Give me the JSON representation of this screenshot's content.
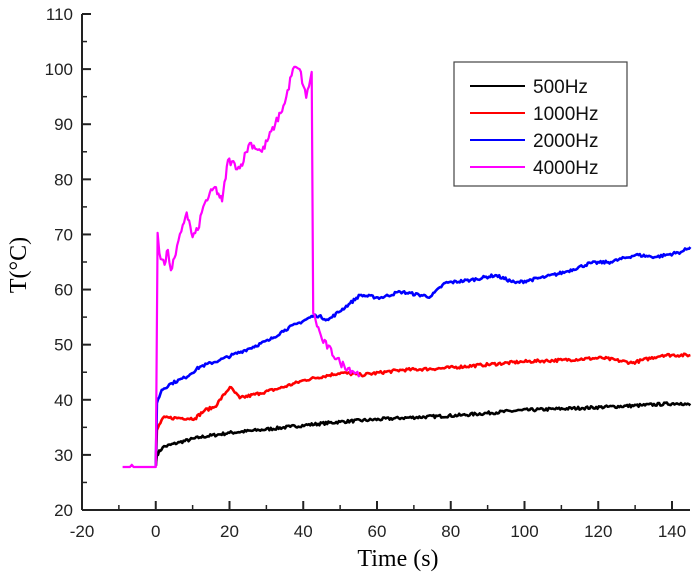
{
  "chart_data": {
    "type": "line",
    "title": "",
    "xlabel": "Time (s)",
    "ylabel": "T(°C)",
    "xlim": [
      -20,
      145
    ],
    "ylim": [
      20,
      110
    ],
    "x_ticks": [
      -20,
      0,
      20,
      40,
      60,
      80,
      100,
      120,
      140
    ],
    "x_tick_labels": [
      "-20",
      "0",
      "20",
      "40",
      "60",
      "80",
      "100",
      "120",
      "140"
    ],
    "y_ticks": [
      20,
      30,
      40,
      50,
      60,
      70,
      80,
      90,
      100,
      110
    ],
    "y_tick_labels": [
      "20",
      "30",
      "40",
      "50",
      "60",
      "70",
      "80",
      "90",
      "100",
      "110"
    ],
    "grid": false,
    "legend_position": "top-right",
    "series": [
      {
        "name": "500Hz",
        "color": "#000000",
        "points": [
          [
            0,
            28
          ],
          [
            0.3,
            30
          ],
          [
            1.9,
            31.4
          ],
          [
            6.5,
            32.3
          ],
          [
            12,
            33.2
          ],
          [
            20,
            34
          ],
          [
            28,
            34.5
          ],
          [
            36.5,
            35.1
          ],
          [
            40.5,
            35.4
          ],
          [
            50,
            36
          ],
          [
            66.6,
            36.7
          ],
          [
            83,
            37.2
          ],
          [
            99.3,
            38.1
          ],
          [
            115.6,
            38.5
          ],
          [
            132,
            39
          ],
          [
            142.4,
            39.4
          ],
          [
            145,
            39
          ]
        ]
      },
      {
        "name": "1000Hz",
        "color": "#ff0000",
        "points": [
          [
            0,
            28
          ],
          [
            0.3,
            34.5
          ],
          [
            1.9,
            36.7
          ],
          [
            6.5,
            36.7
          ],
          [
            10.6,
            36.6
          ],
          [
            13.3,
            38.1
          ],
          [
            16,
            38.7
          ],
          [
            20.1,
            42.3
          ],
          [
            22.8,
            40.3
          ],
          [
            28.3,
            41.2
          ],
          [
            33.7,
            42.1
          ],
          [
            40.5,
            43.6
          ],
          [
            50.2,
            44.9
          ],
          [
            55.7,
            44.5
          ],
          [
            66.6,
            45.4
          ],
          [
            77.5,
            45.7
          ],
          [
            88.4,
            46.3
          ],
          [
            99.3,
            46.9
          ],
          [
            110.2,
            47.2
          ],
          [
            121,
            47.6
          ],
          [
            129.2,
            46.7
          ],
          [
            137.4,
            48.1
          ],
          [
            145,
            48.1
          ]
        ]
      },
      {
        "name": "2000Hz",
        "color": "#0000ff",
        "points": [
          [
            0,
            28
          ],
          [
            0.3,
            39.4
          ],
          [
            1.6,
            41.8
          ],
          [
            4.3,
            43
          ],
          [
            7.9,
            44
          ],
          [
            12,
            46
          ],
          [
            17.4,
            47.2
          ],
          [
            24.2,
            49
          ],
          [
            31,
            50.9
          ],
          [
            35,
            52.7
          ],
          [
            39,
            54
          ],
          [
            43.3,
            55.4
          ],
          [
            46.8,
            54.5
          ],
          [
            52.7,
            57.5
          ],
          [
            55.4,
            59
          ],
          [
            60.9,
            58.5
          ],
          [
            66.3,
            59.6
          ],
          [
            74.5,
            58.7
          ],
          [
            78.5,
            61.2
          ],
          [
            85.3,
            61.7
          ],
          [
            92.1,
            62.6
          ],
          [
            97.6,
            61.2
          ],
          [
            105.7,
            62.3
          ],
          [
            111.1,
            63.2
          ],
          [
            117.9,
            64.8
          ],
          [
            123.4,
            65
          ],
          [
            130.2,
            66.3
          ],
          [
            135.6,
            65.9
          ],
          [
            142.4,
            66.8
          ],
          [
            145,
            67.7
          ]
        ]
      },
      {
        "name": "4000Hz",
        "color": "#ff00ff",
        "points": [
          [
            -9,
            27.8
          ],
          [
            -7,
            27.8
          ],
          [
            -6.5,
            28.2
          ],
          [
            -6,
            27.8
          ],
          [
            0,
            27.8
          ],
          [
            0.5,
            70.3
          ],
          [
            1,
            66.6
          ],
          [
            2.4,
            64.5
          ],
          [
            3.3,
            67.2
          ],
          [
            4.1,
            63.5
          ],
          [
            5.4,
            66.3
          ],
          [
            7.3,
            71.7
          ],
          [
            8.4,
            74
          ],
          [
            10,
            69.5
          ],
          [
            11.4,
            70.8
          ],
          [
            12.5,
            74
          ],
          [
            13.3,
            75.7
          ],
          [
            16,
            78.6
          ],
          [
            18,
            76
          ],
          [
            19.6,
            83.5
          ],
          [
            22.8,
            82
          ],
          [
            25.5,
            86.6
          ],
          [
            28.8,
            85
          ],
          [
            32.4,
            90
          ],
          [
            35,
            93.8
          ],
          [
            37.2,
            100
          ],
          [
            39,
            100
          ],
          [
            40.8,
            94.8
          ],
          [
            42.3,
            99.5
          ],
          [
            42.7,
            55.7
          ],
          [
            45.1,
            50.9
          ],
          [
            50,
            46.7
          ],
          [
            55.4,
            44.5
          ]
        ]
      }
    ]
  }
}
